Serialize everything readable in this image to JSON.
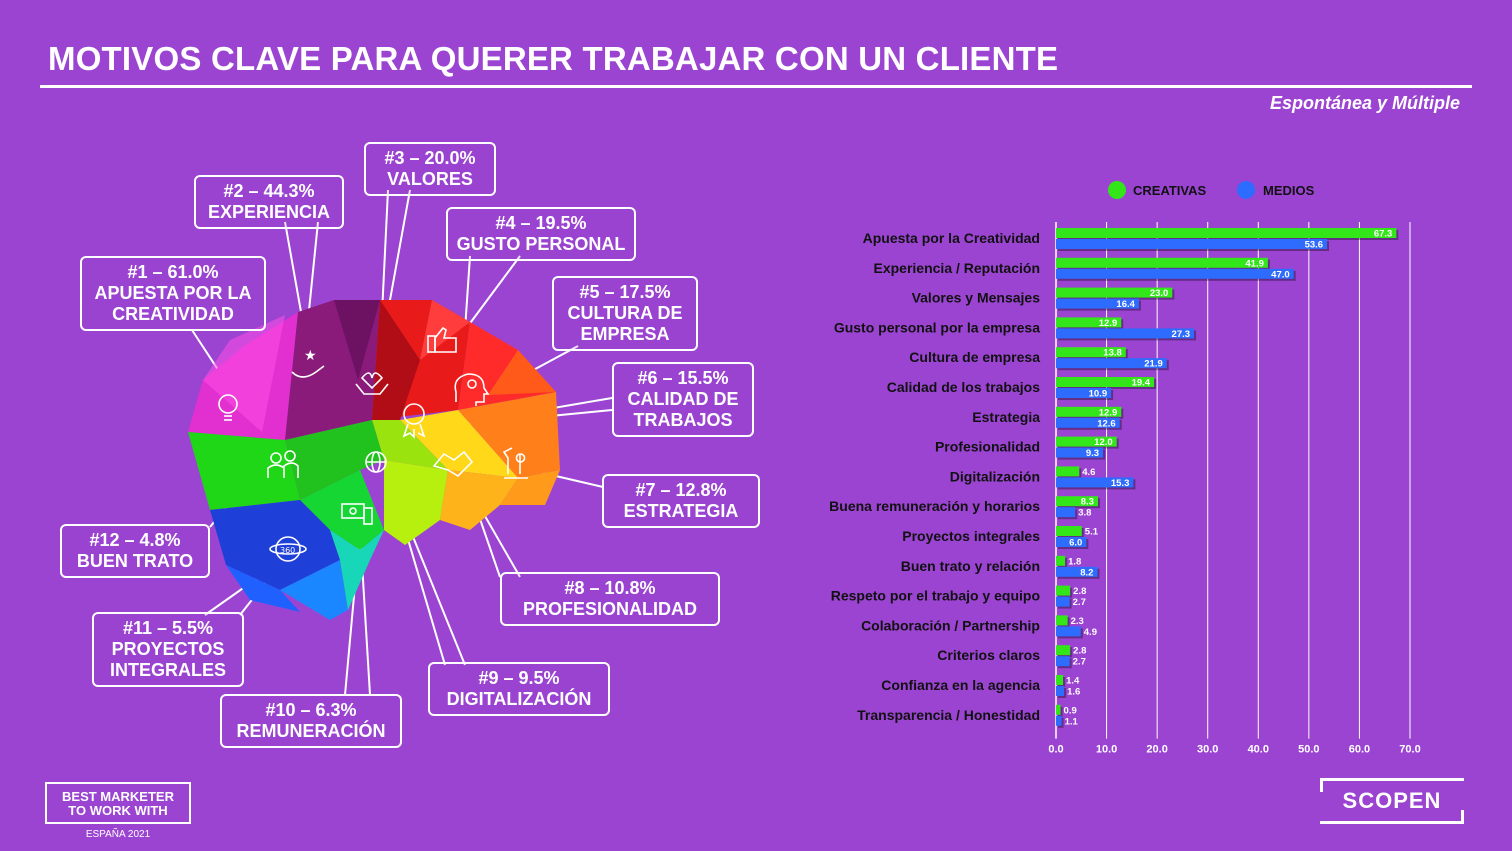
{
  "title": "MOTIVOS CLAVE PARA QUERER TRABAJAR CON UN CLIENTE",
  "subtitle": "Espontánea y Múltiple",
  "callouts": [
    {
      "rank": "#1 – 61.0%",
      "lines": [
        "APUESTA POR LA",
        "CREATIVIDAD"
      ],
      "icon": "lightbulb-icon"
    },
    {
      "rank": "#2 – 44.3%",
      "lines": [
        "EXPERIENCIA"
      ],
      "icon": "hand-stars-icon"
    },
    {
      "rank": "#3 – 20.0%",
      "lines": [
        "VALORES"
      ],
      "icon": "heart-hands-icon"
    },
    {
      "rank": "#4 – 19.5%",
      "lines": [
        "GUSTO PERSONAL"
      ],
      "icon": "thumbs-up-icon"
    },
    {
      "rank": "#5 – 17.5%",
      "lines": [
        "CULTURA DE",
        "EMPRESA"
      ],
      "icon": "head-gear-icon"
    },
    {
      "rank": "#6 – 15.5%",
      "lines": [
        "CALIDAD DE",
        "TRABAJOS"
      ],
      "icon": "medal-icon"
    },
    {
      "rank": "#7 – 12.8%",
      "lines": [
        "ESTRATEGIA"
      ],
      "icon": "chess-icon"
    },
    {
      "rank": "#8 – 10.8%",
      "lines": [
        "PROFESIONALIDAD"
      ],
      "icon": "handshake-icon"
    },
    {
      "rank": "#9 – 9.5%",
      "lines": [
        "DIGITALIZACIÓN"
      ],
      "icon": "globe-network-icon"
    },
    {
      "rank": "#10 – 6.3%",
      "lines": [
        "REMUNERACIÓN"
      ],
      "icon": "money-icon"
    },
    {
      "rank": "#11 – 5.5%",
      "lines": [
        "PROYECTOS",
        "INTEGRALES"
      ],
      "icon": "360-icon"
    },
    {
      "rank": "#12 – 4.8%",
      "lines": [
        "BUEN TRATO"
      ],
      "icon": "people-icon"
    }
  ],
  "chart_data": {
    "type": "bar",
    "orientation": "horizontal",
    "categories": [
      "Apuesta por la Creatividad",
      "Experiencia / Reputación",
      "Valores y Mensajes",
      "Gusto personal por la empresa",
      "Cultura de empresa",
      "Calidad de los trabajos",
      "Estrategia",
      "Profesionalidad",
      "Digitalización",
      "Buena remuneración y horarios",
      "Proyectos integrales",
      "Buen trato y relación",
      "Respeto por el trabajo y equipo",
      "Colaboración / Partnership",
      "Criterios claros",
      "Confianza en la agencia",
      "Transparencia / Honestidad"
    ],
    "series": [
      {
        "name": "CREATIVAS",
        "color": "#33e61a",
        "values": [
          67.3,
          41.9,
          23.0,
          12.9,
          13.8,
          19.4,
          12.9,
          12.0,
          4.6,
          8.3,
          5.1,
          1.8,
          2.8,
          2.3,
          2.8,
          1.4,
          0.9
        ]
      },
      {
        "name": "MEDIOS",
        "color": "#2e6bff",
        "values": [
          53.6,
          47.0,
          16.4,
          27.3,
          21.9,
          10.9,
          12.6,
          9.3,
          15.3,
          3.8,
          6.0,
          8.2,
          2.7,
          4.9,
          2.7,
          1.6,
          1.1
        ]
      }
    ],
    "xlim": [
      0,
      70
    ],
    "xticks": [
      "0.0",
      "10.0",
      "20.0",
      "30.0",
      "40.0",
      "50.0",
      "60.0",
      "70.0"
    ],
    "grid": true,
    "legend_position": "top"
  },
  "footer": {
    "logo_lines": [
      "BEST MARKETER",
      "TO WORK WITH"
    ],
    "logo_sub": "ESPAÑA 2021",
    "brand": "SCOPEN"
  }
}
